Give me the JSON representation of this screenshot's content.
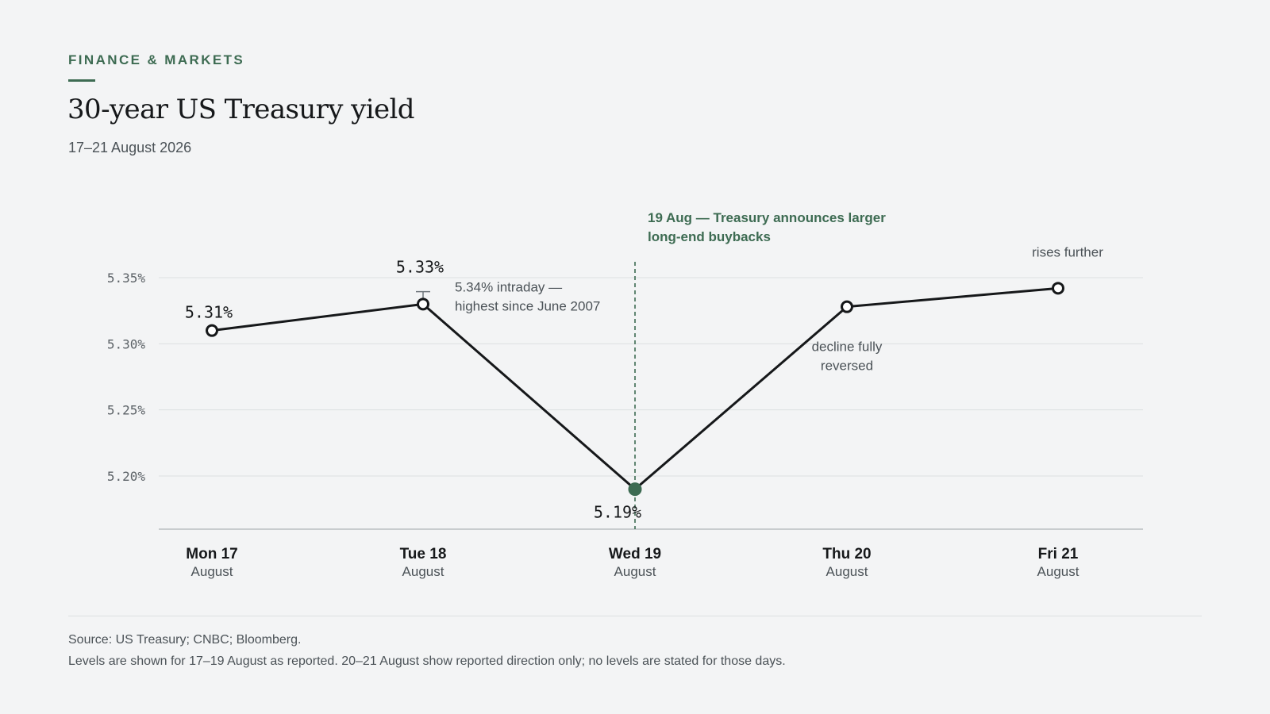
{
  "header": {
    "kicker": "FINANCE & MARKETS",
    "title": "30-year US Treasury yield",
    "subtitle": "17–21 August 2026"
  },
  "footer": {
    "source": "Source: US Treasury; CNBC; Bloomberg.",
    "note": "Levels are shown for 17–19 August as reported. 20–21 August show reported direction only; no levels are stated for those days."
  },
  "colors": {
    "accent": "#3d6b52",
    "line": "#16181a",
    "grid": "#dcdfe1",
    "axis": "#b9bec2",
    "text_muted": "#4b5257"
  },
  "chart_data": {
    "type": "line",
    "title": "30-year US Treasury yield",
    "xlabel": "",
    "ylabel": "",
    "ylim": [
      5.16,
      5.37
    ],
    "yticks": [
      5.2,
      5.25,
      5.3,
      5.35
    ],
    "ytick_labels": [
      "5.20%",
      "5.25%",
      "5.30%",
      "5.35%"
    ],
    "grid": true,
    "categories": [
      {
        "day": "Mon 17",
        "month": "August"
      },
      {
        "day": "Tue 18",
        "month": "August"
      },
      {
        "day": "Wed 19",
        "month": "August"
      },
      {
        "day": "Thu 20",
        "month": "August"
      },
      {
        "day": "Fri 21",
        "month": "August"
      }
    ],
    "series": [
      {
        "values": [
          5.31,
          5.33,
          5.19,
          5.328,
          5.342
        ],
        "labels": [
          "5.31%",
          "5.33%",
          "5.19%",
          "",
          ""
        ]
      }
    ],
    "highlight_index": 2,
    "intraday_high": {
      "index": 1,
      "value": 5.34
    },
    "annotations": [
      {
        "index": 1,
        "lines": [
          "5.34% intraday —",
          "highest since June 2007"
        ]
      },
      {
        "index": 3,
        "lines": [
          "decline fully",
          "reversed"
        ]
      },
      {
        "index": 4,
        "lines": [
          "rises further"
        ]
      }
    ],
    "event": {
      "index": 2,
      "lines": [
        "19 Aug — Treasury announces larger",
        "long-end buybacks"
      ]
    }
  }
}
